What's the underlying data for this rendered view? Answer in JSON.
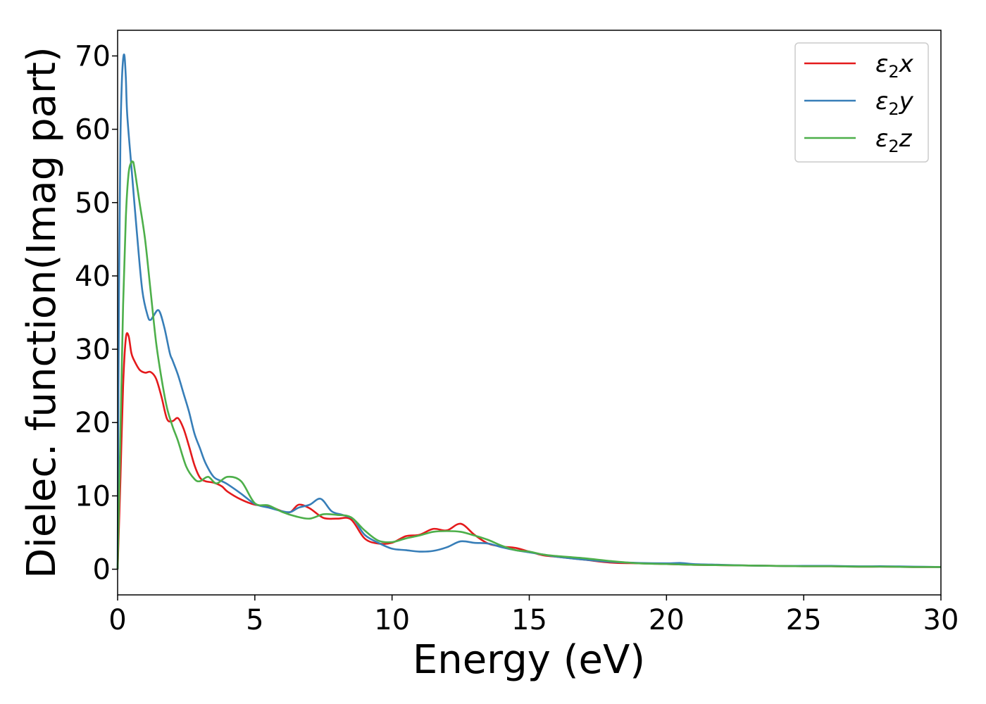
{
  "chart_data": {
    "type": "line",
    "title": "",
    "xlabel": "Energy (eV)",
    "ylabel": "Dielec. function(Imag part)",
    "xlim": [
      0,
      30
    ],
    "ylim": [
      -3.5,
      73.5
    ],
    "xticks": [
      0,
      5,
      10,
      15,
      20,
      25,
      30
    ],
    "yticks": [
      0,
      10,
      20,
      30,
      40,
      50,
      60,
      70
    ],
    "grid": false,
    "legend_position": "top-right",
    "series": [
      {
        "name": "ε₂x",
        "legend_base": "ε",
        "legend_sub": "2",
        "legend_tail": "x",
        "color": "#e41a1c",
        "x": [
          0,
          0.1,
          0.2,
          0.3,
          0.4,
          0.5,
          0.6,
          0.8,
          1.0,
          1.2,
          1.4,
          1.6,
          1.8,
          2.0,
          2.2,
          2.4,
          2.6,
          2.8,
          3.0,
          3.2,
          3.5,
          3.8,
          4.0,
          4.5,
          5.0,
          5.5,
          6.0,
          6.3,
          6.6,
          7.0,
          7.5,
          8.0,
          8.5,
          9.0,
          9.5,
          10.0,
          10.5,
          11.0,
          11.5,
          12.0,
          12.5,
          13.0,
          13.5,
          14.0,
          14.5,
          15.0,
          15.5,
          16.0,
          17.0,
          18.0,
          19.0,
          20.0,
          21.0,
          22.0,
          23.0,
          24.0,
          25.0,
          26.0,
          27.0,
          28.0,
          29.0,
          30.0
        ],
        "y": [
          0,
          12,
          25,
          31.5,
          31.8,
          29.5,
          28.5,
          27.2,
          26.8,
          26.9,
          26,
          23.5,
          20.5,
          20.2,
          20.6,
          19.2,
          16.8,
          14.2,
          12.5,
          12.0,
          11.8,
          11.3,
          10.6,
          9.5,
          8.8,
          8.6,
          7.9,
          7.8,
          8.8,
          8.3,
          7.0,
          6.9,
          6.8,
          4.2,
          3.5,
          3.6,
          4.5,
          4.7,
          5.5,
          5.3,
          6.2,
          4.7,
          3.5,
          3.1,
          2.9,
          2.4,
          1.9,
          1.7,
          1.3,
          0.9,
          0.8,
          0.7,
          0.6,
          0.55,
          0.5,
          0.45,
          0.4,
          0.4,
          0.35,
          0.35,
          0.3,
          0.3
        ]
      },
      {
        "name": "ε₂y",
        "legend_base": "ε",
        "legend_sub": "2",
        "legend_tail": "y",
        "color": "#377eb8",
        "x": [
          0,
          0.05,
          0.1,
          0.15,
          0.2,
          0.25,
          0.3,
          0.35,
          0.5,
          0.7,
          0.9,
          1.1,
          1.2,
          1.3,
          1.5,
          1.7,
          1.9,
          2.0,
          2.2,
          2.4,
          2.6,
          2.8,
          3.0,
          3.2,
          3.5,
          3.8,
          4.0,
          4.5,
          5.0,
          5.5,
          6.0,
          6.3,
          6.6,
          7.0,
          7.4,
          7.8,
          8.2,
          8.6,
          9.0,
          9.5,
          10.0,
          10.5,
          11.0,
          11.5,
          12.0,
          12.5,
          13.0,
          13.5,
          14.0,
          14.5,
          15.0,
          15.5,
          16.0,
          17.0,
          18.0,
          19.0,
          20.0,
          20.5,
          21.0,
          22.0,
          23.0,
          24.0,
          25.0,
          26.0,
          27.0,
          28.0,
          29.0,
          30.0
        ],
        "y": [
          0,
          38,
          58,
          66,
          69.5,
          70,
          67,
          62,
          55,
          46,
          38,
          34.5,
          34,
          34.5,
          35.3,
          33,
          29.5,
          28.5,
          26.5,
          24,
          21.5,
          18.5,
          16.5,
          14.5,
          12.6,
          12.0,
          11.6,
          10.3,
          8.9,
          8.4,
          7.9,
          7.8,
          8.4,
          8.8,
          9.6,
          7.9,
          7.4,
          6.8,
          4.7,
          3.6,
          2.8,
          2.6,
          2.4,
          2.5,
          3.0,
          3.8,
          3.6,
          3.5,
          3.0,
          2.6,
          2.3,
          2.0,
          1.7,
          1.3,
          1.0,
          0.85,
          0.8,
          0.85,
          0.7,
          0.6,
          0.5,
          0.45,
          0.45,
          0.45,
          0.4,
          0.4,
          0.35,
          0.3
        ]
      },
      {
        "name": "ε₂z",
        "legend_base": "ε",
        "legend_sub": "2",
        "legend_tail": "z",
        "color": "#4daf4a",
        "x": [
          0,
          0.1,
          0.2,
          0.3,
          0.4,
          0.5,
          0.55,
          0.6,
          0.8,
          1.0,
          1.2,
          1.4,
          1.6,
          1.8,
          2.0,
          2.2,
          2.5,
          2.8,
          3.0,
          3.3,
          3.6,
          4.0,
          4.5,
          5.0,
          5.5,
          6.0,
          6.5,
          7.0,
          7.5,
          8.0,
          8.5,
          9.0,
          9.5,
          10.0,
          10.5,
          11.0,
          11.5,
          12.0,
          12.5,
          13.0,
          13.5,
          14.0,
          14.5,
          15.0,
          15.5,
          16.0,
          17.0,
          18.0,
          19.0,
          20.0,
          21.0,
          22.0,
          23.0,
          24.0,
          25.0,
          26.0,
          27.0,
          28.0,
          29.0,
          30.0
        ],
        "y": [
          0,
          18,
          36,
          48,
          54,
          55.5,
          55.5,
          55,
          50,
          45,
          38,
          31,
          26,
          22,
          19.5,
          17.5,
          14,
          12.3,
          12.0,
          12.6,
          11.7,
          12.6,
          12.0,
          9.0,
          8.7,
          7.8,
          7.2,
          6.9,
          7.5,
          7.4,
          7.1,
          5.3,
          3.9,
          3.7,
          4.2,
          4.6,
          5.1,
          5.2,
          5.1,
          4.6,
          4.0,
          3.2,
          2.6,
          2.4,
          2.0,
          1.8,
          1.5,
          1.1,
          0.8,
          0.7,
          0.6,
          0.55,
          0.5,
          0.45,
          0.4,
          0.4,
          0.35,
          0.35,
          0.3,
          0.3
        ]
      }
    ]
  }
}
